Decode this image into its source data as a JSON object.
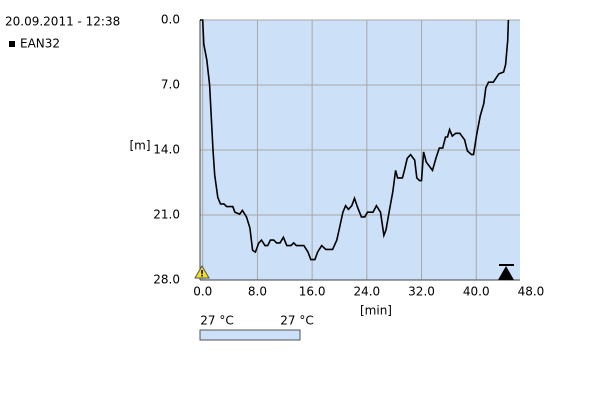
{
  "chart_data": {
    "type": "line",
    "title": "20.09.2011 - 12:38",
    "x_label": "[min]",
    "y_label": "[m]",
    "xlim": [
      -0.4,
      46.4
    ],
    "xticks": [
      {
        "value": 0,
        "label": "0.0"
      },
      {
        "value": 8,
        "label": "8.0"
      },
      {
        "value": 16,
        "label": "16.0"
      },
      {
        "value": 24,
        "label": "24.0"
      },
      {
        "value": 32,
        "label": "32.0"
      },
      {
        "value": 40,
        "label": "40.0"
      },
      {
        "value": 48,
        "label": "48.0"
      }
    ],
    "ylim": [
      0,
      28
    ],
    "y_inverted": true,
    "yticks": [
      {
        "value": 0,
        "label": "0.0"
      },
      {
        "value": 7,
        "label": "7.0"
      },
      {
        "value": 14,
        "label": "14.0"
      },
      {
        "value": 21,
        "label": "21.0"
      },
      {
        "value": 28,
        "label": "28.0"
      }
    ],
    "grid": true,
    "plot_background": "#cce0f8",
    "x": [
      -0.4,
      0,
      0.15,
      0.6,
      1.0,
      1.5,
      1.75,
      2.2,
      2.6,
      3.1,
      3.5,
      4.4,
      4.7,
      5.4,
      5.8,
      6.4,
      6.9,
      7.3,
      7.7,
      8.2,
      8.6,
      9.1,
      9.5,
      9.9,
      10.4,
      10.8,
      11.3,
      11.8,
      12.3,
      12.9,
      13.3,
      13.7,
      14.8,
      15.4,
      15.8,
      16.4,
      16.8,
      17.4,
      18,
      19,
      19.6,
      20,
      20.5,
      20.9,
      21.3,
      21.8,
      22.2,
      22.6,
      23.2,
      23.7,
      24.1,
      24.9,
      25.4,
      26,
      26.5,
      26.8,
      27.3,
      27.8,
      28.2,
      28.5,
      29.2,
      29.5,
      29.9,
      30.4,
      31,
      31.3,
      31.7,
      32,
      32.3,
      32.7,
      33.6,
      34.1,
      34.6,
      35.1,
      35.5,
      35.8,
      36.1,
      36.5,
      37,
      37.6,
      38.3,
      38.7,
      39.3,
      39.6,
      40.1,
      40.6,
      41.1,
      41.4,
      41.8,
      42.5,
      43.3,
      44,
      44.3,
      44.6,
      44.7
    ],
    "series": [
      {
        "name": "EAN32",
        "color": "#000000",
        "values": [
          0,
          0,
          2.6,
          4.3,
          7.0,
          14,
          16.7,
          19.1,
          19.8,
          19.8,
          20.1,
          20.1,
          20.7,
          20.9,
          20.5,
          21.2,
          22.4,
          24.8,
          25,
          24,
          23.7,
          24.3,
          24.3,
          23.7,
          23.7,
          24,
          24,
          23.4,
          24.3,
          24.3,
          24,
          24.3,
          24.3,
          25,
          25.8,
          25.8,
          25,
          24.3,
          24.7,
          24.7,
          23.7,
          22.4,
          20.7,
          20.0,
          20.4,
          20.0,
          19.2,
          20.1,
          21.2,
          21.2,
          20.7,
          20.7,
          20.0,
          20.7,
          23.2,
          22.6,
          20.5,
          18.5,
          16.2,
          17.0,
          17.0,
          16.2,
          14.9,
          14.5,
          15.1,
          17.0,
          17.3,
          17.3,
          14.2,
          15.3,
          16.2,
          14.9,
          13.8,
          13.8,
          12.6,
          12.6,
          11.8,
          12.5,
          12.2,
          12.2,
          12.9,
          14.1,
          14.5,
          14.5,
          12.2,
          10.3,
          9.0,
          7.3,
          6.7,
          6.7,
          5.8,
          5.6,
          4.8,
          2.2,
          0
        ]
      }
    ],
    "temp_scale": {
      "min_label": "27 °C",
      "max_label": "27 °C",
      "color": "#cce0f8"
    }
  }
}
